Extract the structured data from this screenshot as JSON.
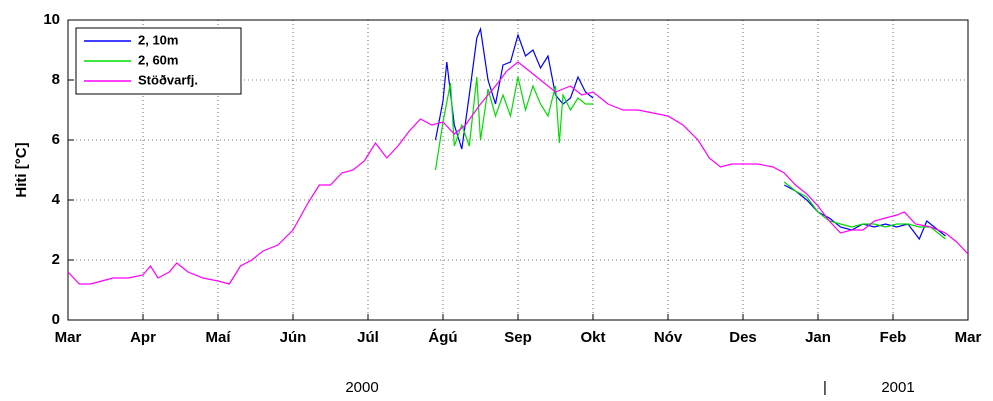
{
  "chart_data": {
    "type": "line",
    "y_label": "Hiti [°C]",
    "xlim": [
      0,
      12
    ],
    "xticks": [
      {
        "value": 0,
        "label": "Mar"
      },
      {
        "value": 1,
        "label": "Apr"
      },
      {
        "value": 2,
        "label": "Maí"
      },
      {
        "value": 3,
        "label": "Jún"
      },
      {
        "value": 4,
        "label": "Júl"
      },
      {
        "value": 5,
        "label": "Ágú"
      },
      {
        "value": 6,
        "label": "Sep"
      },
      {
        "value": 7,
        "label": "Okt"
      },
      {
        "value": 8,
        "label": "Nóv"
      },
      {
        "value": 9,
        "label": "Des"
      },
      {
        "value": 10,
        "label": "Jan"
      },
      {
        "value": 11,
        "label": "Feb"
      },
      {
        "value": 12,
        "label": "Mar"
      }
    ],
    "ylim": [
      0,
      10
    ],
    "yticks": [
      0,
      2,
      4,
      6,
      8,
      10
    ],
    "grid": true,
    "legend": "upper-left",
    "annotations": [
      "2000",
      "|",
      "2001"
    ],
    "series": [
      {
        "name": "2, 10m",
        "color": "#0000ff",
        "x": [
          4.9,
          5.0,
          5.05,
          5.15,
          5.25,
          5.35,
          5.45,
          5.5,
          5.6,
          5.7,
          5.8,
          5.9,
          6.0,
          6.1,
          6.2,
          6.3,
          6.4,
          6.5,
          6.6,
          6.7,
          6.8,
          6.9,
          7.0,
          8.0,
          9.55,
          9.7,
          9.85,
          10.0,
          10.15,
          10.3,
          10.45,
          10.6,
          10.75,
          10.9,
          11.05,
          11.2,
          11.35,
          11.45,
          11.6,
          11.7
        ],
        "values": [
          6.0,
          7.3,
          8.6,
          6.5,
          5.7,
          7.5,
          9.4,
          9.7,
          8.0,
          7.2,
          8.5,
          8.6,
          9.5,
          8.8,
          9.0,
          8.4,
          8.8,
          7.5,
          7.2,
          7.4,
          8.1,
          7.6,
          7.4,
          null,
          4.5,
          4.3,
          4.0,
          3.6,
          3.4,
          3.1,
          3.0,
          3.2,
          3.1,
          3.2,
          3.1,
          3.2,
          2.7,
          3.3,
          3.0,
          2.8
        ]
      },
      {
        "name": "2, 60m",
        "color": "#00dd00",
        "x": [
          4.9,
          5.0,
          5.1,
          5.15,
          5.25,
          5.35,
          5.45,
          5.5,
          5.6,
          5.7,
          5.8,
          5.9,
          6.0,
          6.1,
          6.2,
          6.3,
          6.4,
          6.5,
          6.55,
          6.6,
          6.7,
          6.8,
          6.9,
          7.0,
          8.0,
          9.55,
          9.7,
          9.85,
          10.0,
          10.15,
          10.3,
          10.45,
          10.6,
          10.75,
          10.9,
          11.05,
          11.2,
          11.35,
          11.5,
          11.7
        ],
        "values": [
          5.0,
          6.6,
          7.9,
          5.8,
          6.5,
          5.8,
          8.1,
          6.0,
          7.7,
          6.8,
          7.5,
          6.8,
          8.1,
          7.0,
          7.8,
          7.2,
          6.8,
          7.8,
          5.9,
          7.5,
          7.0,
          7.4,
          7.2,
          7.2,
          null,
          4.6,
          4.3,
          4.1,
          3.6,
          3.3,
          3.2,
          3.1,
          3.2,
          3.2,
          3.1,
          3.2,
          3.2,
          3.1,
          3.1,
          2.7
        ]
      },
      {
        "name": "Stöðvarfj.",
        "color": "#ff00ff",
        "x": [
          0,
          0.15,
          0.3,
          0.45,
          0.6,
          0.8,
          1.0,
          1.1,
          1.2,
          1.35,
          1.45,
          1.6,
          1.8,
          2.0,
          2.15,
          2.3,
          2.45,
          2.6,
          2.8,
          3.0,
          3.2,
          3.35,
          3.5,
          3.65,
          3.8,
          3.95,
          4.1,
          4.25,
          4.4,
          4.55,
          4.7,
          4.85,
          5.0,
          5.15,
          5.3,
          5.5,
          5.7,
          5.85,
          6.0,
          6.15,
          6.3,
          6.5,
          6.7,
          6.85,
          7.0,
          7.2,
          7.4,
          7.6,
          7.8,
          8.0,
          8.2,
          8.4,
          8.55,
          8.7,
          8.85,
          9.0,
          9.2,
          9.4,
          9.55,
          9.7,
          9.85,
          10.0,
          10.15,
          10.3,
          10.45,
          10.6,
          10.75,
          10.9,
          11.05,
          11.15,
          11.3,
          11.5,
          11.7,
          11.85,
          12.0
        ],
        "values": [
          1.6,
          1.2,
          1.2,
          1.3,
          1.4,
          1.4,
          1.5,
          1.8,
          1.4,
          1.6,
          1.9,
          1.6,
          1.4,
          1.3,
          1.2,
          1.8,
          2.0,
          2.3,
          2.5,
          3.0,
          3.9,
          4.5,
          4.5,
          4.9,
          5.0,
          5.3,
          5.9,
          5.4,
          5.8,
          6.3,
          6.7,
          6.5,
          6.6,
          6.2,
          6.5,
          7.2,
          7.8,
          8.3,
          8.6,
          8.3,
          8.0,
          7.6,
          7.8,
          7.5,
          7.6,
          7.2,
          7.0,
          7.0,
          6.9,
          6.8,
          6.5,
          6.0,
          5.4,
          5.1,
          5.2,
          5.2,
          5.2,
          5.1,
          4.9,
          4.5,
          4.2,
          3.8,
          3.3,
          2.9,
          3.0,
          3.0,
          3.3,
          3.4,
          3.5,
          3.6,
          3.2,
          3.1,
          2.9,
          2.6,
          2.2
        ]
      }
    ]
  }
}
